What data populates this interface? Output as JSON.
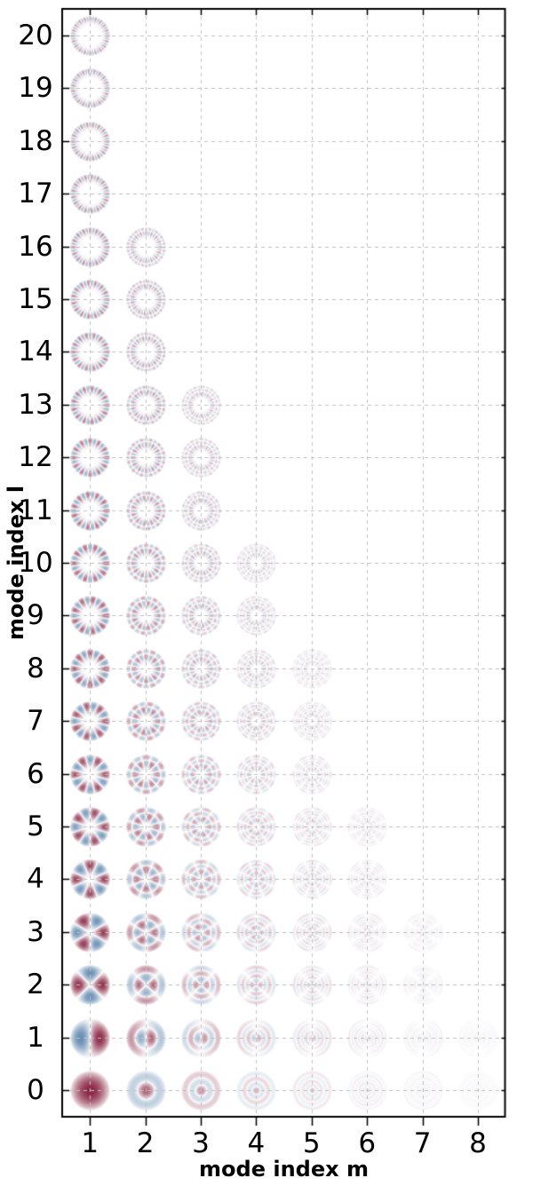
{
  "chart_data": {
    "type": "scatter",
    "description": "Grid of guided LP(l,m) fiber mode field profiles arranged by azimuthal mode index l (rows) and radial mode index m (columns); red = positive field lobes, blue = negative field lobes; modes near cutoff appear fainter",
    "xlabel": "mode index m",
    "ylabel": "mode index l",
    "x_ticks": [
      1,
      2,
      3,
      4,
      5,
      6,
      7,
      8
    ],
    "y_ticks": [
      0,
      1,
      2,
      3,
      4,
      5,
      6,
      7,
      8,
      9,
      10,
      11,
      12,
      13,
      14,
      15,
      16,
      17,
      18,
      19,
      20
    ],
    "xlim": [
      0.5,
      8.5
    ],
    "ylim": [
      -0.5,
      20.5
    ],
    "grid": "dashed",
    "legend": "none",
    "marker": "LP-fiber-mode-field-profile",
    "max_m_by_l": [
      8,
      8,
      7,
      7,
      6,
      6,
      5,
      5,
      5,
      4,
      4,
      3,
      3,
      3,
      2,
      2,
      2,
      1,
      1,
      1,
      1
    ],
    "modes": [
      [
        0,
        1
      ],
      [
        0,
        2
      ],
      [
        0,
        3
      ],
      [
        0,
        4
      ],
      [
        0,
        5
      ],
      [
        0,
        6
      ],
      [
        0,
        7
      ],
      [
        0,
        8
      ],
      [
        1,
        1
      ],
      [
        1,
        2
      ],
      [
        1,
        3
      ],
      [
        1,
        4
      ],
      [
        1,
        5
      ],
      [
        1,
        6
      ],
      [
        1,
        7
      ],
      [
        1,
        8
      ],
      [
        2,
        1
      ],
      [
        2,
        2
      ],
      [
        2,
        3
      ],
      [
        2,
        4
      ],
      [
        2,
        5
      ],
      [
        2,
        6
      ],
      [
        2,
        7
      ],
      [
        3,
        1
      ],
      [
        3,
        2
      ],
      [
        3,
        3
      ],
      [
        3,
        4
      ],
      [
        3,
        5
      ],
      [
        3,
        6
      ],
      [
        3,
        7
      ],
      [
        4,
        1
      ],
      [
        4,
        2
      ],
      [
        4,
        3
      ],
      [
        4,
        4
      ],
      [
        4,
        5
      ],
      [
        4,
        6
      ],
      [
        5,
        1
      ],
      [
        5,
        2
      ],
      [
        5,
        3
      ],
      [
        5,
        4
      ],
      [
        5,
        5
      ],
      [
        5,
        6
      ],
      [
        6,
        1
      ],
      [
        6,
        2
      ],
      [
        6,
        3
      ],
      [
        6,
        4
      ],
      [
        6,
        5
      ],
      [
        7,
        1
      ],
      [
        7,
        2
      ],
      [
        7,
        3
      ],
      [
        7,
        4
      ],
      [
        7,
        5
      ],
      [
        8,
        1
      ],
      [
        8,
        2
      ],
      [
        8,
        3
      ],
      [
        8,
        4
      ],
      [
        8,
        5
      ],
      [
        9,
        1
      ],
      [
        9,
        2
      ],
      [
        9,
        3
      ],
      [
        9,
        4
      ],
      [
        10,
        1
      ],
      [
        10,
        2
      ],
      [
        10,
        3
      ],
      [
        10,
        4
      ],
      [
        11,
        1
      ],
      [
        11,
        2
      ],
      [
        11,
        3
      ],
      [
        12,
        1
      ],
      [
        12,
        2
      ],
      [
        12,
        3
      ],
      [
        13,
        1
      ],
      [
        13,
        2
      ],
      [
        13,
        3
      ],
      [
        14,
        1
      ],
      [
        14,
        2
      ],
      [
        15,
        1
      ],
      [
        15,
        2
      ],
      [
        16,
        1
      ],
      [
        16,
        2
      ],
      [
        17,
        1
      ],
      [
        18,
        1
      ],
      [
        19,
        1
      ],
      [
        20,
        1
      ]
    ],
    "colors": {
      "positive_lobe": "#86203f",
      "negative_lobe": "#5c84ae",
      "grid": "#c1c1c1",
      "frame": "#000000",
      "background": "#ffffff",
      "text": "#000000"
    }
  }
}
